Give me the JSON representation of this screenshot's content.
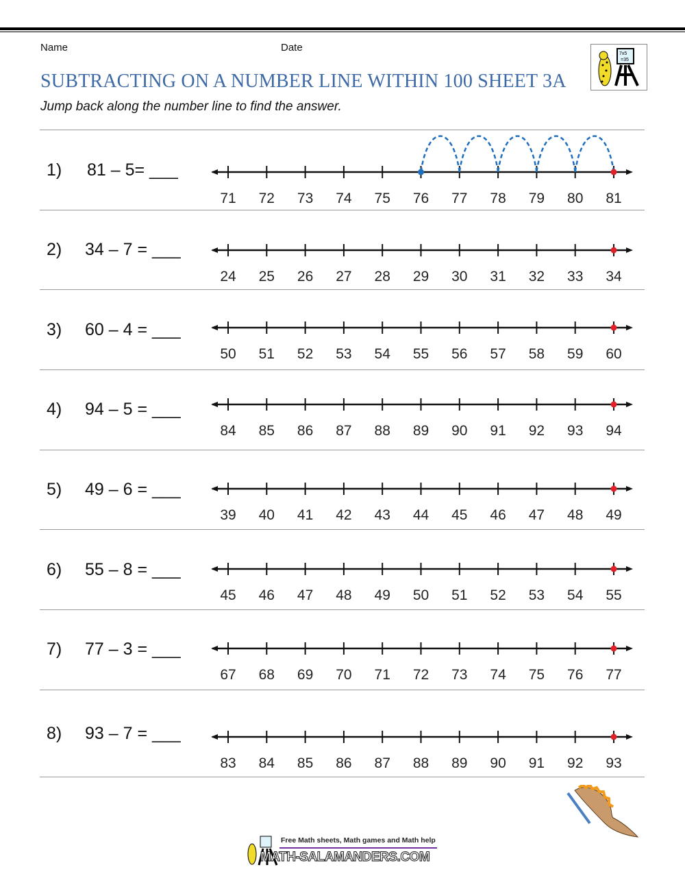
{
  "header": {
    "name_label": "Name",
    "date_label": "Date",
    "title": "SUBTRACTING ON A NUMBER LINE WITHIN 100 SHEET 3A",
    "instruction": "Jump back along the number line to find the answer."
  },
  "colors": {
    "title": "#3d6aa6",
    "jump": "#1f6fbf",
    "start_dot": "#e0202a"
  },
  "problems": [
    {
      "number": "1)",
      "expression": "81 – 5= ___",
      "start": 81,
      "subtract": 5,
      "labels": [
        "71",
        "72",
        "73",
        "74",
        "75",
        "76",
        "77",
        "78",
        "79",
        "80",
        "81"
      ],
      "jumps_shown": true
    },
    {
      "number": "2)",
      "expression": "34 – 7 = ___",
      "start": 34,
      "subtract": 7,
      "labels": [
        "24",
        "25",
        "26",
        "27",
        "28",
        "29",
        "30",
        "31",
        "32",
        "33",
        "34"
      ],
      "jumps_shown": false
    },
    {
      "number": "3)",
      "expression": "60 – 4 = ___",
      "start": 60,
      "subtract": 4,
      "labels": [
        "50",
        "51",
        "52",
        "53",
        "54",
        "55",
        "56",
        "57",
        "58",
        "59",
        "60"
      ],
      "jumps_shown": false
    },
    {
      "number": "4)",
      "expression": "94 – 5 = ___",
      "start": 94,
      "subtract": 5,
      "labels": [
        "84",
        "85",
        "86",
        "87",
        "88",
        "89",
        "90",
        "91",
        "92",
        "93",
        "94"
      ],
      "jumps_shown": false
    },
    {
      "number": "5)",
      "expression": "49 – 6 = ___",
      "start": 49,
      "subtract": 6,
      "labels": [
        "39",
        "40",
        "41",
        "42",
        "43",
        "44",
        "45",
        "46",
        "47",
        "48",
        "49"
      ],
      "jumps_shown": false
    },
    {
      "number": "6)",
      "expression": "55 – 8 = ___",
      "start": 55,
      "subtract": 8,
      "labels": [
        "45",
        "46",
        "47",
        "48",
        "49",
        "50",
        "51",
        "52",
        "53",
        "54",
        "55"
      ],
      "jumps_shown": false
    },
    {
      "number": "7)",
      "expression": "77 – 3 = ___",
      "start": 77,
      "subtract": 3,
      "labels": [
        "67",
        "68",
        "69",
        "70",
        "71",
        "72",
        "73",
        "74",
        "75",
        "76",
        "77"
      ],
      "jumps_shown": false
    },
    {
      "number": "8)",
      "expression": "93 – 7 = ___",
      "start": 93,
      "subtract": 7,
      "labels": [
        "83",
        "84",
        "85",
        "86",
        "87",
        "88",
        "89",
        "90",
        "91",
        "92",
        "93"
      ],
      "jumps_shown": false
    }
  ],
  "footer": {
    "tagline": "Free Math sheets, Math games and Math help",
    "site": "MATH-SALAMANDERS.COM"
  },
  "logo": {
    "text": "7x5 =35"
  }
}
